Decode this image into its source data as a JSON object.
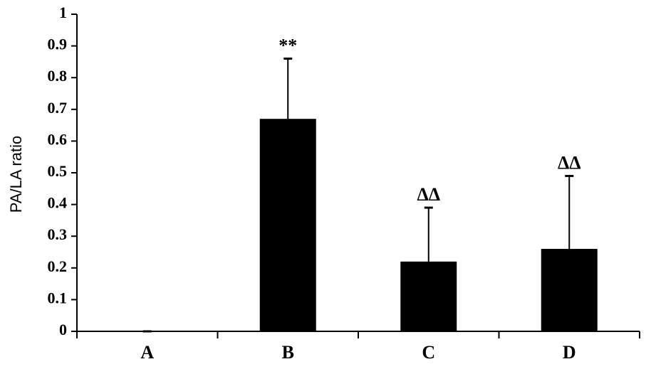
{
  "chart_data": {
    "type": "bar",
    "y_label": "PA/LA ratio",
    "categories": [
      "A",
      "B",
      "C",
      "D"
    ],
    "values": [
      0,
      0.67,
      0.22,
      0.26
    ],
    "errors": [
      0,
      0.19,
      0.17,
      0.23
    ],
    "value_annotations": [
      null,
      "**",
      "ΔΔ",
      "ΔΔ"
    ],
    "color": "#000000",
    "ylim": [
      0,
      1
    ],
    "yticks": [
      0,
      0.1,
      0.2,
      0.3,
      0.4,
      0.5,
      0.6,
      0.7,
      0.8,
      0.9,
      1
    ],
    "grid": false
  }
}
